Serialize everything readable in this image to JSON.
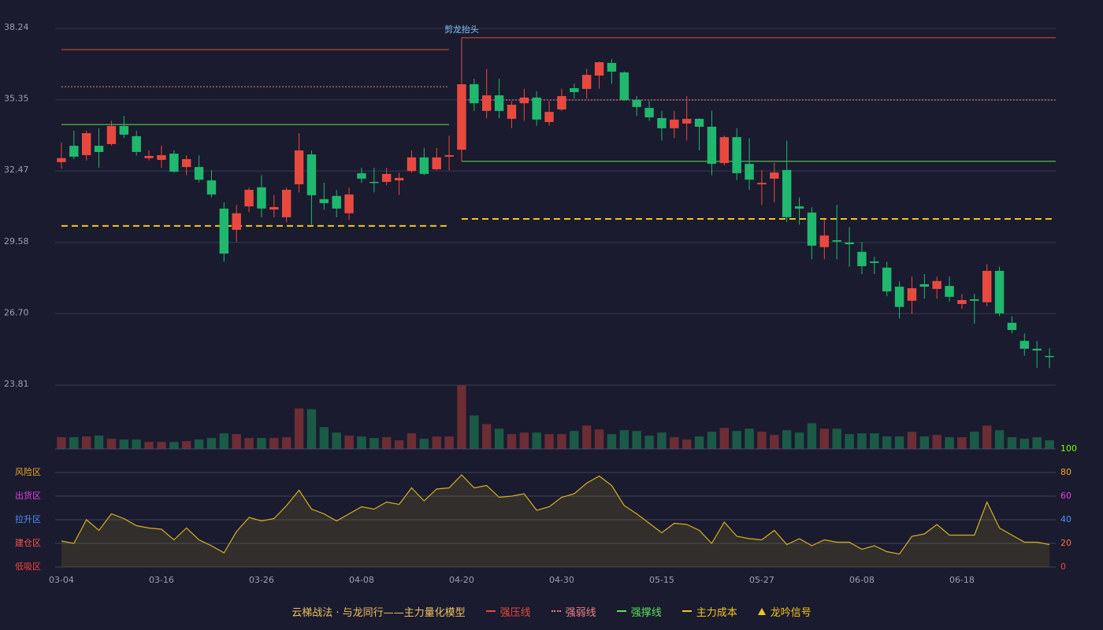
{
  "chart_data": {
    "type": "candlestick",
    "categories": [
      "03-04",
      null,
      null,
      null,
      null,
      null,
      null,
      null,
      "03-16",
      null,
      null,
      null,
      null,
      null,
      null,
      null,
      "03-26",
      null,
      null,
      null,
      null,
      null,
      null,
      null,
      "04-08",
      null,
      null,
      null,
      null,
      null,
      null,
      null,
      "04-20",
      null,
      null,
      null,
      null,
      null,
      null,
      null,
      "04-30",
      null,
      null,
      null,
      null,
      null,
      null,
      null,
      "05-15",
      null,
      null,
      null,
      null,
      null,
      null,
      null,
      "05-27",
      null,
      null,
      null,
      null,
      null,
      null,
      null,
      "06-08",
      null,
      null,
      null,
      null,
      null,
      null,
      null,
      "06-18",
      null,
      null,
      null,
      null,
      null,
      null,
      null
    ],
    "open": [
      32.83,
      33.49,
      33.11,
      33.49,
      33.56,
      34.29,
      33.88,
      32.99,
      32.92,
      33.17,
      32.63,
      32.63,
      32.09,
      30.95,
      30.09,
      31.04,
      31.81,
      30.91,
      30.6,
      31.93,
      33.14,
      31.33,
      31.46,
      30.76,
      32.38,
      32.03,
      32.03,
      32.09,
      32.47,
      33.02,
      32.54,
      33.05,
      33.33,
      35.98,
      34.9,
      35.53,
      34.58,
      35.21,
      35.44,
      34.45,
      34.96,
      35.82,
      35.79,
      36.33,
      36.84,
      36.46,
      35.34,
      35.02,
      34.61,
      34.2,
      34.39,
      34.58,
      34.26,
      32.79,
      33.84,
      32.76,
      31.93,
      32.16,
      32.51,
      31.04,
      30.79,
      29.39,
      29.67,
      29.58,
      29.2,
      28.81,
      28.56,
      27.79,
      27.22,
      27.89,
      27.7,
      27.82,
      27.09,
      27.28,
      27.16,
      28.43,
      26.33,
      25.6,
      25.28,
      24.99
    ],
    "high": [
      33.62,
      34.1,
      34.1,
      34.2,
      34.5,
      34.7,
      34.1,
      33.3,
      33.5,
      33.3,
      33.1,
      33.1,
      32.5,
      31.2,
      31.1,
      31.8,
      32.3,
      31.5,
      31.8,
      34.0,
      33.3,
      32.0,
      31.7,
      31.8,
      32.6,
      32.6,
      32.6,
      32.4,
      33.3,
      33.4,
      33.4,
      33.9,
      35.98,
      36.2,
      36.6,
      36.2,
      35.3,
      35.8,
      35.7,
      35.3,
      35.8,
      36.0,
      36.6,
      36.9,
      37.0,
      36.5,
      35.5,
      35.3,
      34.9,
      34.9,
      35.5,
      34.6,
      34.9,
      33.9,
      34.2,
      33.8,
      32.5,
      32.8,
      33.7,
      31.4,
      31.0,
      30.5,
      31.1,
      30.2,
      29.6,
      29.0,
      28.8,
      28.0,
      28.2,
      28.3,
      28.2,
      28.2,
      27.5,
      27.5,
      28.7,
      28.6,
      26.6,
      25.9,
      25.6,
      25.3
    ],
    "low": [
      32.56,
      32.95,
      32.9,
      32.6,
      33.5,
      33.8,
      33.1,
      32.9,
      32.6,
      32.4,
      32.3,
      32.0,
      31.4,
      28.8,
      29.6,
      30.8,
      30.6,
      30.6,
      30.4,
      31.6,
      30.3,
      30.9,
      30.6,
      30.5,
      32.0,
      31.6,
      31.9,
      31.5,
      32.4,
      32.3,
      32.5,
      32.5,
      33.3,
      34.9,
      34.6,
      34.6,
      34.2,
      34.5,
      34.3,
      34.3,
      34.9,
      35.4,
      35.4,
      35.8,
      36.0,
      35.3,
      34.7,
      34.5,
      33.7,
      33.8,
      33.7,
      33.3,
      32.3,
      32.7,
      32.1,
      31.7,
      31.1,
      31.2,
      30.4,
      30.3,
      28.9,
      28.9,
      28.9,
      28.6,
      28.3,
      28.3,
      27.4,
      26.5,
      26.7,
      27.3,
      27.3,
      27.2,
      26.9,
      26.3,
      27.0,
      26.6,
      25.9,
      25.0,
      24.5,
      24.5
    ],
    "close": [
      32.99,
      33.05,
      34.0,
      33.24,
      34.29,
      33.94,
      33.24,
      33.08,
      33.11,
      32.44,
      32.95,
      32.12,
      31.52,
      29.13,
      30.76,
      31.71,
      30.95,
      31.01,
      31.71,
      33.3,
      31.49,
      31.17,
      30.95,
      31.52,
      32.16,
      31.99,
      32.35,
      32.19,
      33.02,
      32.35,
      33.02,
      33.11,
      35.98,
      35.21,
      35.53,
      34.9,
      35.15,
      35.44,
      34.55,
      34.86,
      35.5,
      35.66,
      36.36,
      36.87,
      36.49,
      35.34,
      35.06,
      34.64,
      34.2,
      34.55,
      34.58,
      34.26,
      32.76,
      33.84,
      32.38,
      32.12,
      31.99,
      32.41,
      30.6,
      30.95,
      29.45,
      29.86,
      29.61,
      29.51,
      28.62,
      28.75,
      27.6,
      26.97,
      27.73,
      27.79,
      28.02,
      27.38,
      27.25,
      27.22,
      28.43,
      26.71,
      26.04,
      25.28,
      25.21,
      24.96
    ],
    "up_color": "#e8493f",
    "down_color": "#1fb86e",
    "ylim": [
      23.81,
      38.24
    ],
    "yticks": [
      38.24,
      35.35,
      32.47,
      29.58,
      {
        "value": 26.7,
        "label": "26.70"
      },
      23.81
    ],
    "grid": true,
    "volume": [
      15,
      15,
      16,
      17,
      13,
      12,
      12,
      9,
      9,
      9,
      10,
      12,
      14,
      20,
      19,
      14,
      14,
      14,
      15,
      52,
      51,
      28,
      21,
      17,
      16,
      14,
      15,
      11,
      20,
      13,
      16,
      16,
      82,
      43,
      32,
      26,
      19,
      21,
      21,
      19,
      19,
      23,
      30,
      25,
      19,
      24,
      23,
      17,
      21,
      15,
      12,
      16,
      22,
      27,
      23,
      26,
      22,
      18,
      24,
      21,
      33,
      26,
      26,
      19,
      20,
      20,
      16,
      16,
      22,
      16,
      18,
      15,
      15,
      22,
      30,
      24,
      15,
      13,
      15,
      11
    ],
    "segment_starts": [
      "03-04",
      "04-20"
    ],
    "levels": [
      {
        "name": "强压线",
        "color": "#e8493f",
        "dash": "solid",
        "values": [
          37.38,
          37.86
        ]
      },
      {
        "name": "强弱线",
        "color": "#f08080",
        "dash": "dotted",
        "values": [
          35.88,
          35.34
        ]
      },
      {
        "name": "强撑线",
        "color": "#5ee05e",
        "dash": "solid",
        "values": [
          34.35,
          32.86
        ]
      },
      {
        "name": "主力成本",
        "color": "#f5c518",
        "dash": "dashed",
        "values": [
          30.25,
          30.53
        ]
      }
    ],
    "annotation": {
      "text": "剪龙抬头",
      "at": "04-20",
      "color": "#7ec8ff"
    },
    "indicator": {
      "values": [
        22,
        20,
        40,
        31,
        45,
        41,
        35,
        33,
        32,
        23,
        33,
        23,
        18,
        12,
        30,
        42,
        39,
        41,
        52,
        65,
        49,
        45,
        39,
        45,
        51,
        49,
        55,
        53,
        67,
        56,
        66,
        67,
        78,
        67,
        69,
        59,
        60,
        62,
        48,
        51,
        59,
        62,
        71,
        77,
        69,
        52,
        45,
        37,
        29,
        37,
        36,
        31,
        20,
        38,
        26,
        24,
        23,
        31,
        19,
        24,
        18,
        23,
        21,
        21,
        15,
        18,
        13,
        11,
        26,
        28,
        36,
        27,
        27,
        27,
        55,
        33,
        27,
        21,
        21,
        19
      ],
      "color": "#d4b020",
      "ylim": [
        0,
        100
      ],
      "yticks": [
        100,
        80,
        60,
        40,
        20,
        0
      ],
      "ytick_colors": [
        "#7fff00",
        "#f5a623",
        "#e040e0",
        "#4a90ff",
        "#ff7040",
        "#ff4040"
      ],
      "zones": [
        {
          "label": "风险区",
          "value": 80,
          "color": "#f5a623"
        },
        {
          "label": "出货区",
          "value": 60,
          "color": "#e040e0"
        },
        {
          "label": "拉升区",
          "value": 40,
          "color": "#4a90ff"
        },
        {
          "label": "建仓区",
          "value": 20,
          "color": "#ff5050"
        },
        {
          "label": "低吸区",
          "value": 0,
          "color": "#ff4040"
        }
      ]
    },
    "legend_title": "云梯战法 · 与龙同行——主力量化模型",
    "legend_title_color": "#f0c060",
    "signal_name": "龙吟信号",
    "signal_color": "#f5c518"
  }
}
